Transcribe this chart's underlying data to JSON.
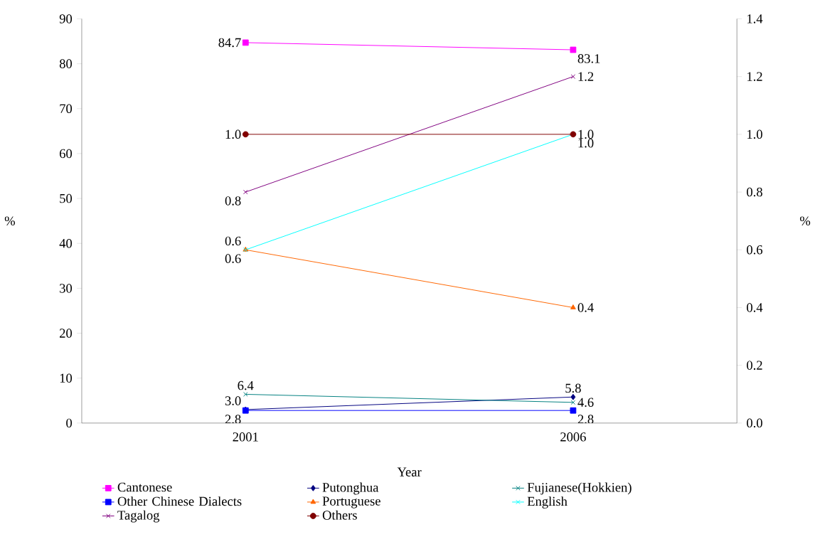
{
  "chart_data": {
    "type": "line",
    "xlabel": "Year",
    "ylabel": "%",
    "y2label": "%",
    "categories": [
      "2001",
      "2006"
    ],
    "ylim": [
      0,
      90
    ],
    "yticks": [
      0,
      10,
      20,
      30,
      40,
      50,
      60,
      70,
      80,
      90
    ],
    "y2lim": [
      0,
      1.4
    ],
    "y2ticks": [
      {
        "value": 0,
        "label": "0.0"
      },
      {
        "value": 0.2,
        "label": "0.2"
      },
      {
        "value": 0.4,
        "label": "0.4"
      },
      {
        "value": 0.6,
        "label": "0.6"
      },
      {
        "value": 0.8,
        "label": "0.8"
      },
      {
        "value": 1.0,
        "label": "1.0"
      },
      {
        "value": 1.2,
        "label": "1.2"
      },
      {
        "value": 1.4,
        "label": "1.4"
      }
    ],
    "legend": "bottom",
    "grid": false,
    "series": [
      {
        "name": "Cantonese",
        "color": "#ff00ff",
        "marker": "square",
        "values": [
          84.7,
          83.1
        ],
        "value_labels": [
          "84.7",
          "83.1"
        ]
      },
      {
        "name": "Putonghua",
        "color": "#000080",
        "marker": "diamond",
        "values": [
          3.0,
          5.8
        ],
        "value_labels": [
          "3.0",
          "5.8"
        ]
      },
      {
        "name": "Fujianese(Hokkien)",
        "color": "#008080",
        "marker": "cross",
        "values": [
          6.4,
          4.6
        ],
        "value_labels": [
          "6.4",
          "4.6"
        ]
      },
      {
        "name": "Other Chinese Dialects",
        "color": "#0000ff",
        "marker": "square",
        "values": [
          2.8,
          2.8
        ],
        "value_labels": [
          "2.8",
          "2.8"
        ]
      },
      {
        "name": "Portuguese",
        "color": "#ff6600",
        "marker": "triangle",
        "axis": "y2",
        "values": [
          0.6,
          0.4
        ],
        "value_labels": [
          "0.6",
          "0.4"
        ]
      },
      {
        "name": "English",
        "color": "#00ffff",
        "marker": "cross",
        "axis": "y2",
        "values": [
          0.6,
          1.0
        ],
        "value_labels": [
          "0.6",
          "1.0"
        ]
      },
      {
        "name": "Tagalog",
        "color": "#800080",
        "marker": "cross",
        "axis": "y2",
        "values": [
          0.8,
          1.2
        ],
        "value_labels": [
          "0.8",
          "1.2"
        ]
      },
      {
        "name": "Others",
        "color": "#800000",
        "marker": "circle",
        "axis": "y2",
        "values": [
          1.0,
          1.0
        ],
        "value_labels": [
          "1.0",
          "1.0"
        ]
      }
    ]
  }
}
